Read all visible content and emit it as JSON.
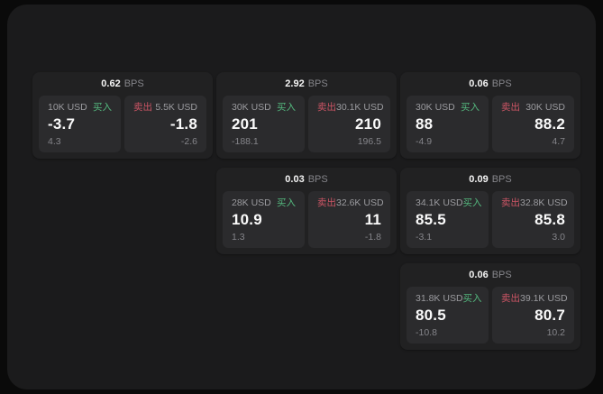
{
  "labels": {
    "bps": "BPS",
    "buy": "买入",
    "sell": "卖出"
  },
  "colors": {
    "page_background": "#0a0a0a",
    "panel_background": "#1b1b1c",
    "card_background": "#212122",
    "pane_background": "#2b2b2d",
    "buy_green": "#54b87e",
    "sell_red": "#cc5565",
    "primary_text": "#fafafa",
    "muted_text": "#85858a"
  },
  "cards": [
    {
      "row": 1,
      "col": 1,
      "bps_value": "0.62",
      "buy_amount": "10K USD",
      "buy_value": "-3.7",
      "buy_sub": "4.3",
      "sell_amount": "5.5K USD",
      "sell_value": "-1.8",
      "sell_sub": "-2.6"
    },
    {
      "row": 1,
      "col": 2,
      "bps_value": "2.92",
      "buy_amount": "30K USD",
      "buy_value": "201",
      "buy_sub": "-188.1",
      "sell_amount": "30.1K USD",
      "sell_value": "210",
      "sell_sub": "196.5"
    },
    {
      "row": 1,
      "col": 3,
      "bps_value": "0.06",
      "buy_amount": "30K USD",
      "buy_value": "88",
      "buy_sub": "-4.9",
      "sell_amount": "30K USD",
      "sell_value": "88.2",
      "sell_sub": "4.7"
    },
    {
      "row": 2,
      "col": 2,
      "bps_value": "0.03",
      "buy_amount": "28K USD",
      "buy_value": "10.9",
      "buy_sub": "1.3",
      "sell_amount": "32.6K USD",
      "sell_value": "11",
      "sell_sub": "-1.8"
    },
    {
      "row": 2,
      "col": 3,
      "bps_value": "0.09",
      "buy_amount": "34.1K USD",
      "buy_value": "85.5",
      "buy_sub": "-3.1",
      "sell_amount": "32.8K USD",
      "sell_value": "85.8",
      "sell_sub": "3.0"
    },
    {
      "row": 3,
      "col": 3,
      "bps_value": "0.06",
      "buy_amount": "31.8K USD",
      "buy_value": "80.5",
      "buy_sub": "-10.8",
      "sell_amount": "39.1K USD",
      "sell_value": "80.7",
      "sell_sub": "10.2"
    }
  ]
}
